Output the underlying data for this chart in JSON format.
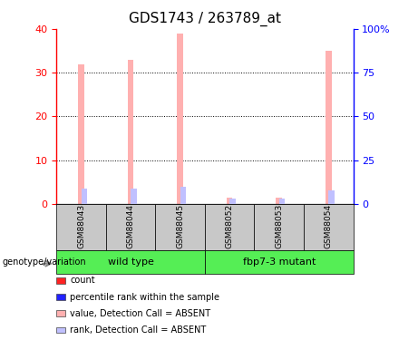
{
  "title": "GDS1743 / 263789_at",
  "samples": [
    "GSM88043",
    "GSM88044",
    "GSM88045",
    "GSM88052",
    "GSM88053",
    "GSM88054"
  ],
  "bar_values": [
    32,
    33,
    39,
    1.5,
    1.5,
    35
  ],
  "rank_values": [
    9,
    9,
    10,
    3,
    3,
    8
  ],
  "bar_color_absent": "#ffb0b0",
  "rank_color_absent": "#c0c0ff",
  "ylim_left": [
    0,
    40
  ],
  "ylim_right": [
    0,
    100
  ],
  "yticks_left": [
    0,
    10,
    20,
    30,
    40
  ],
  "yticks_right": [
    0,
    25,
    50,
    75,
    100
  ],
  "ytick_labels_right": [
    "0",
    "25",
    "50",
    "75",
    "100%"
  ],
  "grid_values": [
    10,
    20,
    30
  ],
  "bar_width": 0.12,
  "rank_bar_width": 0.12,
  "legend_items": [
    {
      "label": "count",
      "color": "#ff2222"
    },
    {
      "label": "percentile rank within the sample",
      "color": "#2222ff"
    },
    {
      "label": "value, Detection Call = ABSENT",
      "color": "#ffb0b0"
    },
    {
      "label": "rank, Detection Call = ABSENT",
      "color": "#c0c0ff"
    }
  ],
  "genotype_label": "genotype/variation",
  "group_row_color": "#55ee55",
  "sample_row_color": "#c8c8c8",
  "axis_color_left": "#ff0000",
  "axis_color_right": "#0000ff",
  "title_fontsize": 11,
  "tick_fontsize": 8,
  "group_positions": [
    {
      "start": 0,
      "end": 2,
      "label": "wild type"
    },
    {
      "start": 3,
      "end": 5,
      "label": "fbp7-3 mutant"
    }
  ]
}
